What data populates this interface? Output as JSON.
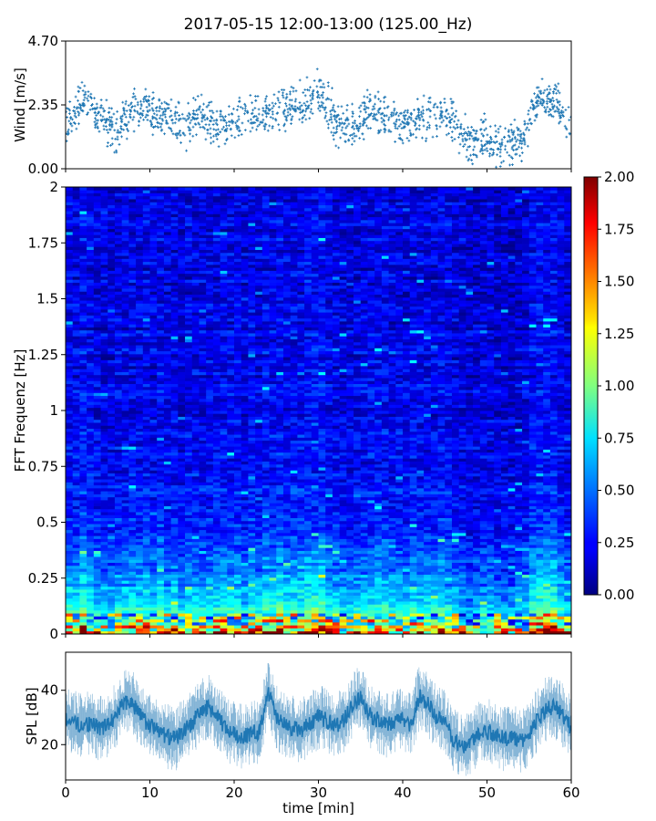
{
  "title": "2017-05-15 12:00-13:00 (125.00_Hz)",
  "chart_data": [
    {
      "type": "scatter",
      "panel": "wind",
      "ylabel": "Wind [m/s]",
      "xlim": [
        0,
        60
      ],
      "ylim": [
        0,
        4.7
      ],
      "yticks": [
        "0.00",
        "2.35",
        "4.70"
      ],
      "marker_color": "#1f77b4",
      "series": [
        {
          "x": [
            0,
            2,
            4,
            6,
            8,
            10,
            12,
            14,
            16,
            18,
            20,
            22,
            24,
            26,
            28,
            30,
            32,
            34,
            36,
            38,
            40,
            42,
            44,
            46,
            48,
            50,
            52,
            54,
            56,
            58,
            60
          ],
          "values": [
            1.6,
            2.6,
            1.9,
            1.4,
            2.2,
            2.1,
            1.9,
            1.5,
            1.9,
            1.6,
            1.7,
            1.9,
            2.0,
            2.2,
            2.3,
            2.8,
            1.8,
            1.5,
            2.1,
            1.8,
            1.7,
            1.8,
            2.0,
            1.8,
            0.9,
            1.2,
            0.9,
            1.0,
            2.6,
            2.4,
            1.6
          ]
        }
      ]
    },
    {
      "type": "heatmap",
      "panel": "spectrogram",
      "ylabel": "FFT Frequenz [Hz]",
      "xlim": [
        0,
        60
      ],
      "ylim": [
        0,
        2
      ],
      "yticks": [
        "0",
        "0.25",
        "0.5",
        "0.75",
        "1",
        "1.25",
        "1.5",
        "1.75",
        "2"
      ],
      "colorbar": {
        "range": [
          0,
          2
        ],
        "ticks": [
          "0.00",
          "0.25",
          "0.50",
          "0.75",
          "1.00",
          "1.25",
          "1.50",
          "1.75",
          "2.00"
        ],
        "colormap": "jet"
      },
      "freq_profile": {
        "freq": [
          0,
          0.03,
          0.08,
          0.15,
          0.25,
          0.35,
          0.5,
          0.7,
          1.0,
          1.5,
          2.0
        ],
        "mean_level": [
          1.5,
          1.2,
          0.9,
          0.65,
          0.52,
          0.42,
          0.32,
          0.27,
          0.22,
          0.2,
          0.2
        ]
      }
    },
    {
      "type": "line",
      "panel": "spl",
      "ylabel": "SPL [dB]",
      "xlabel": "time [min]",
      "xlim": [
        0,
        60
      ],
      "ylim": [
        7,
        54
      ],
      "yticks": [
        "20",
        "40"
      ],
      "xticks": [
        "0",
        "10",
        "20",
        "30",
        "40",
        "50",
        "60"
      ],
      "line_color": "#1f77b4",
      "series": [
        {
          "x": [
            0,
            1,
            2,
            3,
            4,
            5,
            6,
            7,
            8,
            9,
            10,
            11,
            12,
            13,
            14,
            15,
            16,
            17,
            18,
            19,
            20,
            21,
            22,
            23,
            24,
            25,
            26,
            27,
            28,
            29,
            30,
            31,
            32,
            33,
            34,
            35,
            36,
            37,
            38,
            39,
            40,
            41,
            42,
            43,
            44,
            45,
            46,
            47,
            48,
            49,
            50,
            51,
            52,
            53,
            54,
            55,
            56,
            57,
            58,
            59,
            60
          ],
          "values": [
            30,
            28,
            27,
            28,
            26,
            27,
            31,
            36,
            35,
            30,
            27,
            25,
            23,
            22,
            25,
            28,
            32,
            34,
            30,
            26,
            24,
            23,
            24,
            25,
            40,
            30,
            27,
            26,
            25,
            28,
            30,
            29,
            27,
            29,
            34,
            38,
            31,
            29,
            27,
            28,
            30,
            27,
            38,
            35,
            30,
            28,
            22,
            19,
            21,
            24,
            25,
            24,
            22,
            23,
            21,
            24,
            29,
            33,
            34,
            31,
            26
          ]
        }
      ]
    }
  ]
}
